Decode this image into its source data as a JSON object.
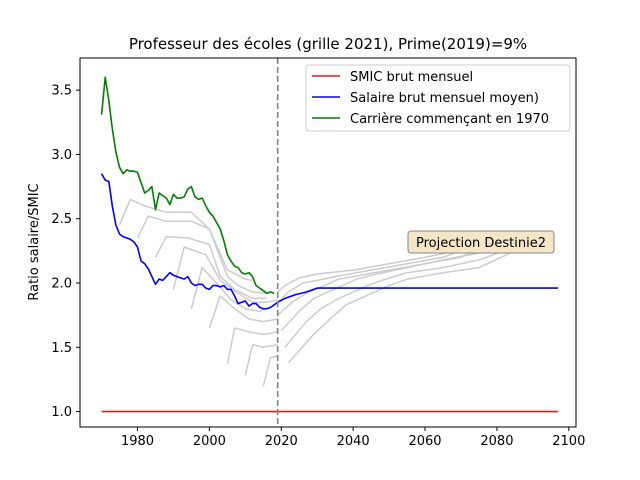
{
  "chart_data": {
    "type": "line",
    "title": "Professeur des écoles (grille 2021), Prime(2019)=9%",
    "xlabel": "",
    "ylabel": "Ratio salaire/SMIC",
    "xlim": [
      1964,
      2102
    ],
    "ylim": [
      0.88,
      3.75
    ],
    "xticks": [
      1980,
      2000,
      2020,
      2040,
      2060,
      2080,
      2100
    ],
    "yticks": [
      1.0,
      1.5,
      2.0,
      2.5,
      3.0,
      3.5
    ],
    "xtick_labels": [
      "1980",
      "2000",
      "2020",
      "2040",
      "2060",
      "2080",
      "2100"
    ],
    "ytick_labels": [
      "1.0",
      "1.5",
      "2.0",
      "2.5",
      "3.0",
      "3.5"
    ],
    "legend_position": "top-right",
    "vline": {
      "x": 2019,
      "color": "#808080",
      "style": "dashed"
    },
    "annotation": {
      "text": "Projection Destinie2",
      "x": 2068,
      "y": 2.3
    },
    "series": [
      {
        "name": "SMIC brut mensuel",
        "color": "#e41a1c",
        "x": [
          1970,
          2097
        ],
        "y": [
          1.0,
          1.0
        ]
      },
      {
        "name": "Salaire brut mensuel moyen)",
        "color": "#0000ff",
        "x": [
          1970,
          1971,
          1972,
          1973,
          1974,
          1975,
          1976,
          1977,
          1978,
          1979,
          1980,
          1981,
          1982,
          1983,
          1984,
          1985,
          1986,
          1987,
          1988,
          1989,
          1990,
          1991,
          1992,
          1993,
          1994,
          1995,
          1996,
          1997,
          1998,
          1999,
          2000,
          2001,
          2002,
          2003,
          2004,
          2005,
          2006,
          2007,
          2008,
          2009,
          2010,
          2011,
          2012,
          2013,
          2014,
          2015,
          2016,
          2017,
          2018,
          2019,
          2021,
          2024,
          2027,
          2030,
          2040,
          2060,
          2097
        ],
        "y": [
          2.85,
          2.8,
          2.79,
          2.6,
          2.45,
          2.38,
          2.36,
          2.35,
          2.34,
          2.32,
          2.28,
          2.17,
          2.15,
          2.11,
          2.05,
          1.99,
          2.03,
          2.02,
          2.05,
          2.08,
          2.06,
          2.05,
          2.04,
          2.03,
          2.05,
          2.0,
          1.98,
          1.99,
          1.99,
          1.96,
          1.95,
          1.98,
          1.98,
          1.97,
          1.98,
          1.95,
          1.95,
          1.9,
          1.84,
          1.85,
          1.86,
          1.82,
          1.84,
          1.84,
          1.81,
          1.8,
          1.8,
          1.81,
          1.83,
          1.85,
          1.88,
          1.91,
          1.93,
          1.96,
          1.96,
          1.96,
          1.96
        ]
      },
      {
        "name": "Carrière commençant en 1970",
        "color": "#008000",
        "x": [
          1970,
          1971,
          1972,
          1973,
          1974,
          1975,
          1976,
          1977,
          1978,
          1979,
          1980,
          1981,
          1982,
          1983,
          1984,
          1985,
          1986,
          1987,
          1988,
          1989,
          1990,
          1991,
          1992,
          1993,
          1994,
          1995,
          1996,
          1997,
          1998,
          1999,
          2000,
          2001,
          2002,
          2003,
          2004,
          2005,
          2006,
          2007,
          2008,
          2009,
          2010,
          2011,
          2012,
          2013,
          2014,
          2015,
          2016,
          2017,
          2018
        ],
        "y": [
          3.31,
          3.6,
          3.42,
          3.2,
          3.02,
          2.9,
          2.85,
          2.88,
          2.87,
          2.87,
          2.86,
          2.78,
          2.7,
          2.72,
          2.75,
          2.57,
          2.7,
          2.68,
          2.66,
          2.61,
          2.69,
          2.66,
          2.66,
          2.67,
          2.73,
          2.75,
          2.67,
          2.65,
          2.66,
          2.6,
          2.55,
          2.52,
          2.47,
          2.42,
          2.33,
          2.22,
          2.17,
          2.13,
          2.12,
          2.08,
          2.07,
          2.08,
          2.05,
          1.98,
          1.96,
          1.94,
          1.92,
          1.93,
          1.92
        ]
      },
      {
        "name": "",
        "color": "#cccccc",
        "x": [
          1975,
          1978,
          1982,
          1988,
          1995,
          2000,
          2005,
          2010,
          2012
        ],
        "y": [
          2.45,
          2.65,
          2.6,
          2.55,
          2.55,
          2.42,
          2.1,
          2.03,
          2.02
        ]
      },
      {
        "name": "",
        "color": "#cccccc",
        "x": [
          1980,
          1983,
          1988,
          1995,
          2000,
          2005,
          2008,
          2012,
          2016
        ],
        "y": [
          2.35,
          2.52,
          2.48,
          2.48,
          2.42,
          2.05,
          1.98,
          1.93,
          1.92
        ]
      },
      {
        "name": "",
        "color": "#cccccc",
        "x": [
          1985,
          1988,
          1994,
          2000,
          2003,
          2007,
          2012,
          2016
        ],
        "y": [
          2.2,
          2.36,
          2.35,
          2.3,
          2.05,
          1.95,
          1.88,
          1.88
        ]
      },
      {
        "name": "",
        "color": "#cccccc",
        "x": [
          1990,
          1993,
          1999,
          2003,
          2008,
          2012,
          2016,
          2019
        ],
        "y": [
          1.95,
          2.28,
          2.22,
          2.02,
          1.92,
          1.85,
          1.85,
          1.87
        ]
      },
      {
        "name": "",
        "color": "#cccccc",
        "x": [
          1995,
          1998,
          2002,
          2006,
          2010,
          2014,
          2018
        ],
        "y": [
          1.8,
          2.12,
          2.0,
          1.87,
          1.8,
          1.78,
          1.82
        ]
      },
      {
        "name": "",
        "color": "#cccccc",
        "x": [
          2000,
          2003,
          2007,
          2011,
          2015,
          2019
        ],
        "y": [
          1.65,
          1.9,
          1.8,
          1.72,
          1.7,
          1.72
        ]
      },
      {
        "name": "",
        "color": "#cccccc",
        "x": [
          2005,
          2007,
          2011,
          2015,
          2019
        ],
        "y": [
          1.37,
          1.65,
          1.62,
          1.6,
          1.62
        ]
      },
      {
        "name": "",
        "color": "#cccccc",
        "x": [
          2010,
          2012,
          2015,
          2019
        ],
        "y": [
          1.28,
          1.52,
          1.5,
          1.52
        ]
      },
      {
        "name": "",
        "color": "#cccccc",
        "x": [
          2015,
          2017,
          2019
        ],
        "y": [
          1.2,
          1.42,
          1.43
        ]
      },
      {
        "name": "",
        "color": "#cccccc",
        "x": [
          2019,
          2021,
          2025,
          2030,
          2040,
          2050,
          2060,
          2069
        ],
        "y": [
          1.93,
          1.98,
          2.04,
          2.07,
          2.1,
          2.15,
          2.2,
          2.25
        ]
      },
      {
        "name": "",
        "color": "#cccccc",
        "x": [
          2019,
          2022,
          2026,
          2030,
          2035,
          2045,
          2055,
          2065,
          2072
        ],
        "y": [
          1.85,
          1.93,
          2.0,
          2.02,
          2.05,
          2.1,
          2.15,
          2.2,
          2.27
        ]
      },
      {
        "name": "",
        "color": "#cccccc",
        "x": [
          2019,
          2023,
          2027,
          2032,
          2036,
          2040,
          2050,
          2060,
          2070,
          2075
        ],
        "y": [
          1.75,
          1.85,
          1.92,
          1.98,
          2.03,
          2.05,
          2.1,
          2.15,
          2.2,
          2.27
        ]
      },
      {
        "name": "",
        "color": "#cccccc",
        "x": [
          2020,
          2025,
          2029,
          2033,
          2037,
          2041,
          2045,
          2055,
          2065,
          2078
        ],
        "y": [
          1.63,
          1.78,
          1.88,
          1.93,
          1.98,
          2.03,
          2.06,
          2.12,
          2.18,
          2.25
        ]
      },
      {
        "name": "",
        "color": "#cccccc",
        "x": [
          2021,
          2027,
          2031,
          2036,
          2040,
          2044,
          2048,
          2055,
          2065,
          2075,
          2082
        ],
        "y": [
          1.5,
          1.7,
          1.8,
          1.88,
          1.93,
          1.98,
          2.02,
          2.08,
          2.12,
          2.18,
          2.25
        ]
      },
      {
        "name": "",
        "color": "#cccccc",
        "x": [
          2022,
          2029,
          2034,
          2038,
          2042,
          2046,
          2050,
          2055,
          2065,
          2075,
          2085
        ],
        "y": [
          1.38,
          1.6,
          1.73,
          1.83,
          1.88,
          1.93,
          1.98,
          2.03,
          2.08,
          2.12,
          2.25
        ]
      }
    ]
  }
}
